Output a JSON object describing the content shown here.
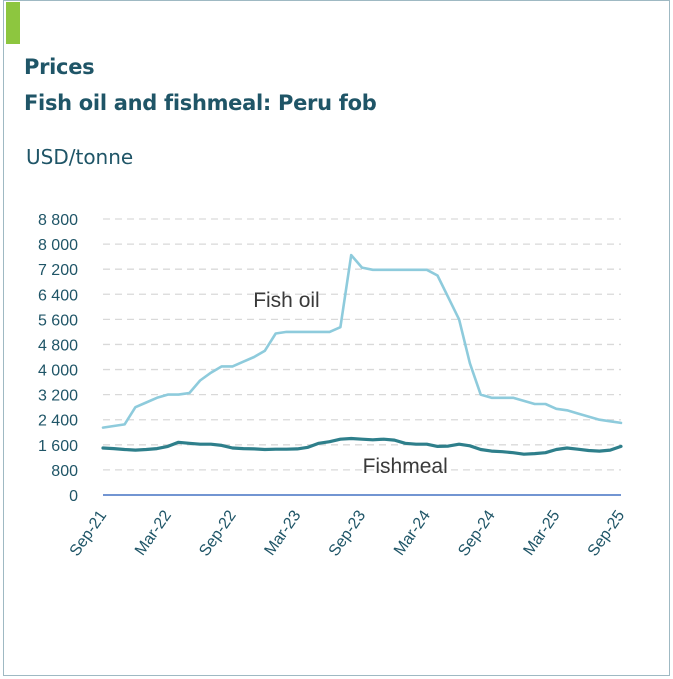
{
  "header": {
    "title": "Prices",
    "subtitle": "Fish oil and fishmeal: Peru fob",
    "unit": "USD/tonne"
  },
  "colors": {
    "accent": "#8dc63f",
    "title": "#1f5567",
    "fish_oil": "#8ecbdc",
    "fishmeal": "#2e7f8b",
    "grid": "#d9d9d9",
    "axis": "#4472c4"
  },
  "chart_data": {
    "type": "line",
    "title": "Fish oil and fishmeal: Peru fob",
    "ylabel": "USD/tonne",
    "xlabel": "",
    "ylim": [
      0,
      8800
    ],
    "yticks": [
      0,
      800,
      1600,
      2400,
      3200,
      4000,
      4800,
      5600,
      6400,
      7200,
      8000,
      8800
    ],
    "ytick_labels": [
      "0",
      "800",
      "1 600",
      "2 400",
      "3 200",
      "4 000",
      "4 800",
      "5 600",
      "6 400",
      "7 200",
      "8 000",
      "8 800"
    ],
    "xticks": [
      0,
      6,
      12,
      18,
      24,
      30,
      36,
      42,
      48
    ],
    "xtick_labels": [
      "Sep-21",
      "Mar-22",
      "Sep-22",
      "Mar-23",
      "Sep-23",
      "Mar-24",
      "Sep-24",
      "Mar-25",
      "Sep-25"
    ],
    "grid": true,
    "series": [
      {
        "name": "Fish oil",
        "x": [
          0,
          1,
          2,
          3,
          4,
          5,
          6,
          7,
          8,
          9,
          10,
          11,
          12,
          13,
          14,
          15,
          16,
          17,
          18,
          19,
          20,
          21,
          22,
          23,
          24,
          25,
          26,
          27,
          28,
          29,
          30,
          31,
          32,
          33,
          34,
          35,
          36,
          37,
          38,
          39,
          40,
          41,
          42,
          43,
          44,
          45,
          46,
          47,
          48
        ],
        "values": [
          2150,
          2200,
          2250,
          2800,
          2950,
          3100,
          3200,
          3200,
          3250,
          3650,
          3900,
          4100,
          4100,
          4250,
          4400,
          4600,
          5150,
          5200,
          5200,
          5200,
          5200,
          5200,
          5350,
          7650,
          7250,
          7180,
          7180,
          7180,
          7180,
          7180,
          7180,
          7000,
          6300,
          5600,
          4200,
          3200,
          3100,
          3100,
          3100,
          3000,
          2900,
          2900,
          2750,
          2700,
          2600,
          2500,
          2400,
          2350,
          2300
        ]
      },
      {
        "name": "Fishmeal",
        "x": [
          0,
          1,
          2,
          3,
          4,
          5,
          6,
          7,
          8,
          9,
          10,
          11,
          12,
          13,
          14,
          15,
          16,
          17,
          18,
          19,
          20,
          21,
          22,
          23,
          24,
          25,
          26,
          27,
          28,
          29,
          30,
          31,
          32,
          33,
          34,
          35,
          36,
          37,
          38,
          39,
          40,
          41,
          42,
          43,
          44,
          45,
          46,
          47,
          48
        ],
        "values": [
          1500,
          1480,
          1450,
          1430,
          1450,
          1480,
          1550,
          1680,
          1650,
          1620,
          1620,
          1580,
          1500,
          1480,
          1470,
          1450,
          1460,
          1460,
          1470,
          1520,
          1650,
          1700,
          1780,
          1800,
          1780,
          1760,
          1780,
          1750,
          1650,
          1620,
          1620,
          1550,
          1560,
          1620,
          1570,
          1450,
          1400,
          1380,
          1350,
          1300,
          1320,
          1350,
          1450,
          1500,
          1460,
          1420,
          1400,
          1430,
          1550
        ]
      }
    ],
    "annotations": [
      {
        "text": "Fish oil",
        "x": 17,
        "y": 6000
      },
      {
        "text": "Fishmeal",
        "x": 28,
        "y": 700
      }
    ]
  }
}
